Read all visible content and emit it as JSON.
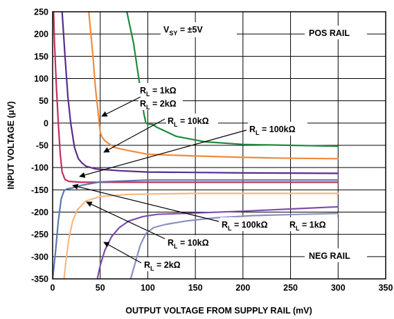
{
  "chart_data": {
    "type": "line",
    "xlabel": "OUTPUT VOLTAGE FROM SUPPLY RAIL (mV)",
    "ylabel": "INPUT VOLTAGE (μV)",
    "xlim": [
      0,
      350
    ],
    "ylim": [
      -350,
      250
    ],
    "xticks": [
      "0",
      "50",
      "100",
      "150",
      "200",
      "250",
      "300",
      "350"
    ],
    "yticks": [
      "250",
      "200",
      "150",
      "100",
      "50",
      "0",
      "-50",
      "-100",
      "-150",
      "-200",
      "-250",
      "-300",
      "-350"
    ],
    "grid": true,
    "colors": {
      "pos_1k": "#1e8a3c",
      "pos_2k": "#f08a3c",
      "pos_10k": "#5b2a8c",
      "pos_100k": "#c0305a",
      "neg_100k": "#5a78b0",
      "neg_10k": "#f7b880",
      "neg_2k": "#7b4fa8",
      "neg_1k": "#8a90c0"
    },
    "series": [
      {
        "key": "pos_1k",
        "points": [
          [
            78,
            250
          ],
          [
            85,
            180
          ],
          [
            92,
            80
          ],
          [
            96,
            20
          ],
          [
            98,
            0
          ],
          [
            100,
            -2
          ],
          [
            105,
            -3
          ],
          [
            110,
            -10
          ],
          [
            130,
            -30
          ],
          [
            160,
            -42
          ],
          [
            200,
            -48
          ],
          [
            250,
            -50
          ],
          [
            300,
            -52
          ]
        ]
      },
      {
        "key": "pos_2k",
        "points": [
          [
            38,
            250
          ],
          [
            42,
            160
          ],
          [
            45,
            80
          ],
          [
            48,
            20
          ],
          [
            50,
            -20
          ],
          [
            52,
            -32
          ],
          [
            55,
            -40
          ],
          [
            65,
            -55
          ],
          [
            80,
            -62
          ],
          [
            100,
            -70
          ],
          [
            150,
            -74
          ],
          [
            200,
            -77
          ],
          [
            250,
            -79
          ],
          [
            300,
            -80
          ]
        ]
      },
      {
        "key": "pos_10k",
        "points": [
          [
            10,
            250
          ],
          [
            13,
            150
          ],
          [
            16,
            60
          ],
          [
            19,
            0
          ],
          [
            23,
            -55
          ],
          [
            27,
            -80
          ],
          [
            31,
            -90
          ],
          [
            35,
            -97
          ],
          [
            45,
            -103
          ],
          [
            70,
            -107
          ],
          [
            100,
            -110
          ],
          [
            150,
            -111
          ],
          [
            200,
            -112
          ],
          [
            300,
            -113
          ]
        ]
      },
      {
        "key": "pos_100k",
        "points": [
          [
            1,
            250
          ],
          [
            2,
            180
          ],
          [
            4,
            80
          ],
          [
            6,
            0
          ],
          [
            8,
            -70
          ],
          [
            10,
            -110
          ],
          [
            13,
            -127
          ],
          [
            17,
            -131
          ],
          [
            30,
            -133
          ],
          [
            100,
            -133
          ],
          [
            200,
            -133
          ],
          [
            300,
            -133
          ]
        ]
      },
      {
        "key": "neg_100k",
        "points": [
          [
            0,
            -350
          ],
          [
            3,
            -290
          ],
          [
            6,
            -220
          ],
          [
            9,
            -170
          ],
          [
            12,
            -152
          ],
          [
            15,
            -148
          ],
          [
            20,
            -146
          ],
          [
            30,
            -140
          ],
          [
            50,
            -132
          ],
          [
            100,
            -128
          ],
          [
            200,
            -128
          ],
          [
            300,
            -128
          ]
        ]
      },
      {
        "key": "neg_10k",
        "points": [
          [
            12,
            -350
          ],
          [
            14,
            -310
          ],
          [
            17,
            -260
          ],
          [
            21,
            -220
          ],
          [
            26,
            -195
          ],
          [
            35,
            -175
          ],
          [
            50,
            -165
          ],
          [
            80,
            -160
          ],
          [
            150,
            -158
          ],
          [
            300,
            -158
          ]
        ]
      },
      {
        "key": "neg_2k",
        "points": [
          [
            47,
            -350
          ],
          [
            50,
            -320
          ],
          [
            55,
            -285
          ],
          [
            62,
            -255
          ],
          [
            70,
            -235
          ],
          [
            80,
            -220
          ],
          [
            95,
            -210
          ],
          [
            110,
            -205
          ],
          [
            150,
            -202
          ],
          [
            200,
            -198
          ],
          [
            250,
            -193
          ],
          [
            300,
            -188
          ]
        ]
      },
      {
        "key": "neg_1k",
        "points": [
          [
            82,
            -350
          ],
          [
            86,
            -320
          ],
          [
            92,
            -275
          ],
          [
            98,
            -248
          ],
          [
            106,
            -235
          ],
          [
            118,
            -228
          ],
          [
            140,
            -220
          ],
          [
            170,
            -213
          ],
          [
            210,
            -208
          ],
          [
            260,
            -205
          ],
          [
            300,
            -203
          ]
        ]
      }
    ],
    "annotations": {
      "vsy": {
        "main": "V",
        "sub": "SY",
        "rest": " = ±5V"
      },
      "pos_rail": "POS RAIL",
      "neg_rail": "NEG RAIL",
      "rl_1k_pos": {
        "main": "R",
        "sub": "L",
        "rest": " = 1kΩ"
      },
      "rl_2k_pos": {
        "main": "R",
        "sub": "L",
        "rest": " = 2kΩ"
      },
      "rl_10k_pos": {
        "main": "R",
        "sub": "L",
        "rest": " = 10kΩ"
      },
      "rl_100k_pos": {
        "main": "R",
        "sub": "L",
        "rest": " = 100kΩ"
      },
      "rl_100k_neg": {
        "main": "R",
        "sub": "L",
        "rest": " = 100kΩ"
      },
      "rl_1k_neg": {
        "main": "R",
        "sub": "L",
        "rest": " = 1kΩ"
      },
      "rl_10k_neg": {
        "main": "R",
        "sub": "L",
        "rest": " = 10kΩ"
      },
      "rl_2k_neg": {
        "main": "R",
        "sub": "L",
        "rest": " = 2kΩ"
      }
    }
  }
}
